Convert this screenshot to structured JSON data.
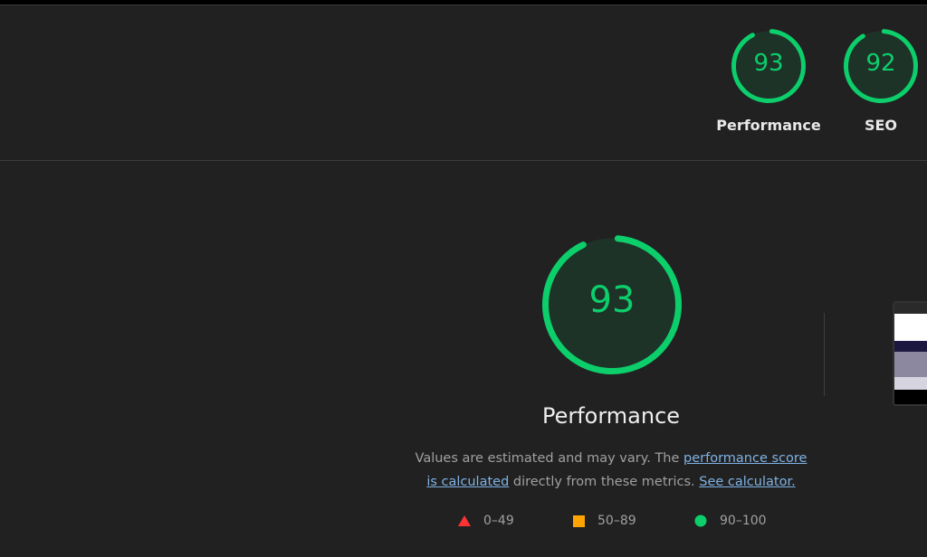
{
  "header_gauges": [
    {
      "label": "Performance",
      "score": 93
    },
    {
      "label": "SEO",
      "score": 92
    }
  ],
  "main": {
    "score": 93,
    "title": "Performance",
    "description_prefix": "Values are estimated and may vary. The ",
    "link_score": "performance score is calculated",
    "description_mid": " directly from these metrics.",
    "link_calculator": "See calculator.",
    "legend": [
      {
        "icon": "red-triangle-icon",
        "range": "0–49",
        "color": "#ff3333"
      },
      {
        "icon": "orange-square-icon",
        "range": "50–89",
        "color": "#ffa400"
      },
      {
        "icon": "green-circle-icon",
        "range": "90–100",
        "color": "#0cce6b"
      }
    ]
  },
  "colors": {
    "pass": "#0cce6b",
    "gauge_fill": "#1e3328",
    "background": "#212121"
  }
}
